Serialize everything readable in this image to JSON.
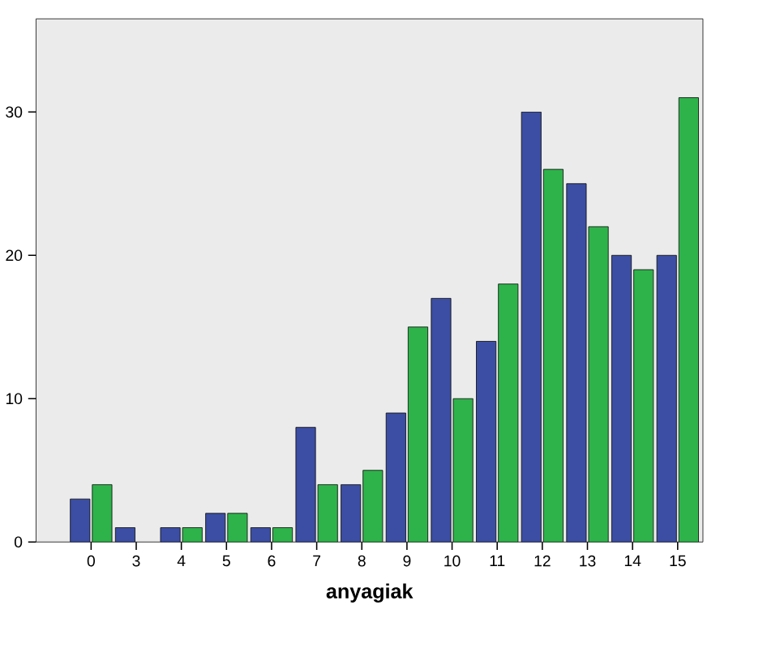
{
  "chart_data": {
    "type": "bar",
    "xlabel": "anyagiak",
    "categories": [
      "0",
      "3",
      "4",
      "5",
      "6",
      "7",
      "8",
      "9",
      "10",
      "11",
      "12",
      "13",
      "14",
      "15"
    ],
    "series": [
      {
        "color": "#3c4ea3",
        "values": [
          3,
          1,
          1,
          2,
          1,
          8,
          4,
          9,
          17,
          14,
          30,
          25,
          20,
          20
        ]
      },
      {
        "color": "#2eb34b",
        "values": [
          4,
          null,
          1,
          2,
          1,
          4,
          5,
          15,
          10,
          18,
          26,
          22,
          19,
          31
        ]
      }
    ],
    "ylim": [
      0,
      36.5
    ],
    "yticks": [
      0,
      10,
      20,
      30
    ]
  }
}
